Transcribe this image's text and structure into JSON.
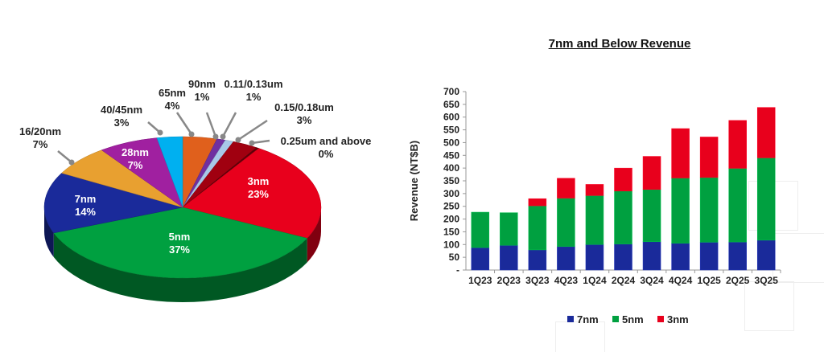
{
  "chart_data": [
    {
      "type": "pie",
      "title": "",
      "slices": [
        {
          "label": "65nm",
          "value": 4,
          "pct": "4%",
          "color": "#e0601c"
        },
        {
          "label": "90nm",
          "value": 1,
          "pct": "1%",
          "color": "#7030a0"
        },
        {
          "label": "0.11/0.13um",
          "value": 1,
          "pct": "1%",
          "color": "#a8c8e8"
        },
        {
          "label": "0.15/0.18um",
          "value": 3,
          "pct": "3%",
          "color": "#a00010"
        },
        {
          "label": "0.25um and above",
          "value": 0.3,
          "pct": "0%",
          "color": "#600008"
        },
        {
          "label": "3nm",
          "value": 23,
          "pct": "23%",
          "color": "#e8001c"
        },
        {
          "label": "5nm",
          "value": 37,
          "pct": "37%",
          "color": "#00a040"
        },
        {
          "label": "7nm",
          "value": 14,
          "pct": "14%",
          "color": "#1a2a9a"
        },
        {
          "label": "16/20nm",
          "value": 7,
          "pct": "7%",
          "color": "#e8a030"
        },
        {
          "label": "28nm",
          "value": 7,
          "pct": "7%",
          "color": "#a020a0"
        },
        {
          "label": "40/45nm",
          "value": 3,
          "pct": "3%",
          "color": "#00b0f0"
        }
      ]
    },
    {
      "type": "bar",
      "stacked": true,
      "title": "7nm and Below Revenue",
      "xlabel": "",
      "ylabel": "Revenue (NT$B)",
      "ylim": [
        0,
        700
      ],
      "yticks": [
        "-",
        "50",
        "100",
        "150",
        "200",
        "250",
        "300",
        "350",
        "400",
        "450",
        "500",
        "550",
        "600",
        "650",
        "700"
      ],
      "categories": [
        "1Q23",
        "2Q23",
        "3Q23",
        "4Q23",
        "1Q24",
        "2Q24",
        "3Q24",
        "4Q24",
        "1Q25",
        "2Q25",
        "3Q25"
      ],
      "series": [
        {
          "name": "7nm",
          "color": "#1a2a9a",
          "values": [
            88,
            97,
            79,
            92,
            100,
            102,
            111,
            105,
            109,
            110,
            117
          ]
        },
        {
          "name": "5nm",
          "color": "#00a040",
          "values": [
            139,
            128,
            173,
            190,
            192,
            208,
            205,
            256,
            254,
            289,
            323
          ]
        },
        {
          "name": "3nm",
          "color": "#e8001c",
          "values": [
            0,
            0,
            28,
            78,
            44,
            90,
            130,
            194,
            159,
            188,
            198
          ]
        }
      ],
      "legend": "bottom"
    }
  ]
}
